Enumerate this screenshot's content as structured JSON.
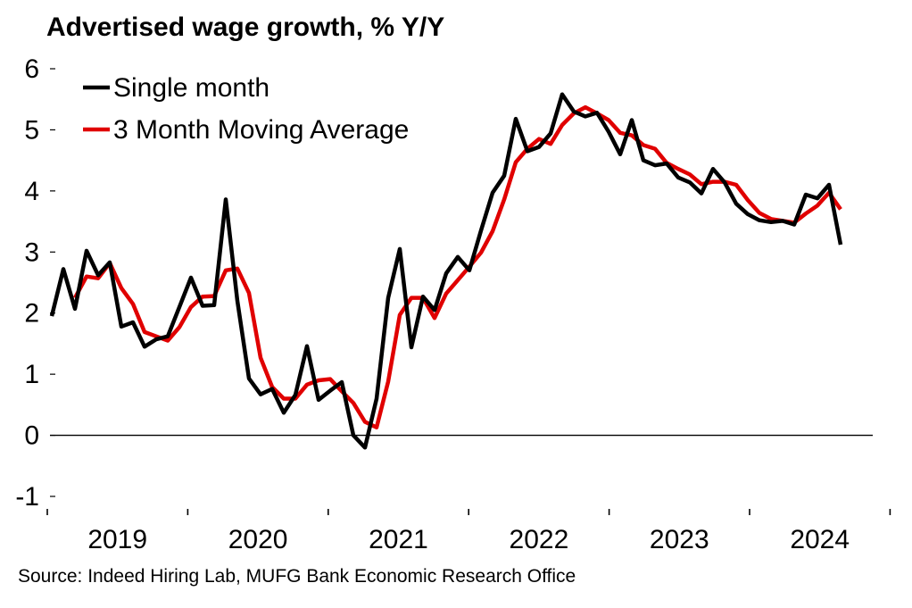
{
  "chart_data": {
    "type": "line",
    "title": "Advertised wage growth, % Y/Y",
    "source": "Source: Indeed Hiring Lab, MUFG Bank Economic Research Office",
    "xlabel": "",
    "ylabel": "",
    "ylim": [
      -1,
      6
    ],
    "yticks": [
      "-1",
      "0",
      "1",
      "2",
      "3",
      "4",
      "5",
      "6"
    ],
    "year_labels": [
      "2019",
      "2020",
      "2021",
      "2022",
      "2023",
      "2024"
    ],
    "x_start": "2019-01",
    "x_end": "2024-09",
    "legend_position": "top-left",
    "colors": {
      "single": "#000000",
      "ma": "#e00000",
      "axis": "#000000"
    },
    "series": [
      {
        "name": "Single month",
        "values": [
          1.95,
          2.72,
          2.07,
          3.02,
          2.62,
          2.83,
          1.78,
          1.85,
          1.45,
          1.57,
          1.62,
          2.1,
          2.58,
          2.12,
          2.13,
          3.86,
          2.2,
          0.93,
          0.67,
          0.76,
          0.37,
          0.66,
          1.46,
          0.58,
          0.73,
          0.87,
          0.0,
          -0.2,
          0.6,
          2.25,
          3.05,
          1.44,
          2.27,
          2.05,
          2.65,
          2.92,
          2.7,
          3.35,
          3.97,
          4.25,
          5.18,
          4.65,
          4.72,
          4.94,
          5.58,
          5.3,
          5.22,
          5.28,
          4.97,
          4.6,
          5.16,
          4.5,
          4.42,
          4.45,
          4.22,
          4.14,
          3.96,
          4.36,
          4.14,
          3.79,
          3.62,
          3.52,
          3.49,
          3.51,
          3.45,
          3.94,
          3.88,
          4.1,
          3.12
        ]
      },
      {
        "name": "3 Month Moving Average",
        "values": [
          null,
          null,
          2.25,
          2.6,
          2.57,
          2.82,
          2.41,
          2.15,
          1.69,
          1.62,
          1.55,
          1.77,
          2.1,
          2.27,
          2.28,
          2.7,
          2.73,
          2.33,
          1.27,
          0.79,
          0.6,
          0.6,
          0.83,
          0.9,
          0.92,
          0.72,
          0.53,
          0.22,
          0.13,
          0.88,
          1.97,
          2.25,
          2.25,
          1.92,
          2.32,
          2.54,
          2.76,
          2.99,
          3.34,
          3.86,
          4.47,
          4.69,
          4.85,
          4.77,
          5.08,
          5.27,
          5.37,
          5.27,
          5.16,
          4.95,
          4.91,
          4.75,
          4.69,
          4.46,
          4.36,
          4.27,
          4.11,
          4.15,
          4.15,
          4.1,
          3.85,
          3.64,
          3.54,
          3.51,
          3.48,
          3.63,
          3.76,
          3.97,
          3.7
        ]
      }
    ]
  }
}
